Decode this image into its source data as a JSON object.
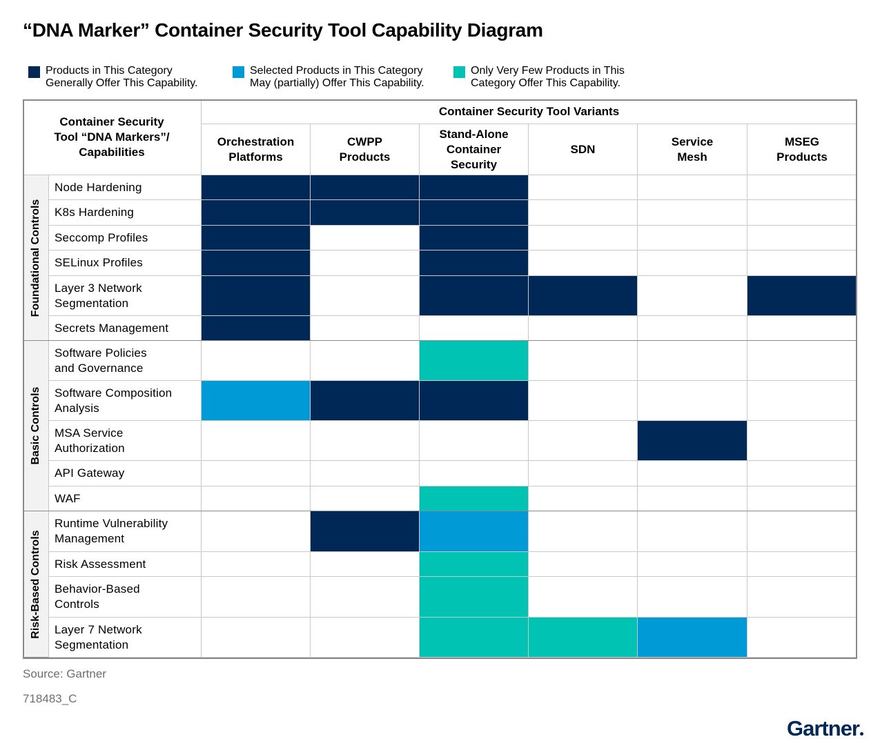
{
  "title": "“DNA Marker” Container Security Tool Capability Diagram",
  "colors": {
    "general": "#002856",
    "partial": "#009ad7",
    "few": "#00c3b3",
    "none": "#ffffff"
  },
  "legend": [
    {
      "key": "general",
      "lines": [
        "Products in This Category",
        "Generally Offer This Capability."
      ]
    },
    {
      "key": "partial",
      "lines": [
        "Selected Products in This Category",
        "May (partially) Offer This Capability."
      ]
    },
    {
      "key": "few",
      "lines": [
        "Only Very Few Products in This",
        "Category Offer This Capability."
      ]
    }
  ],
  "header": {
    "capabilities_lines": [
      "Container Security",
      "Tool “DNA Markers”/",
      "Capabilities"
    ],
    "variants_title": "Container Security Tool Variants",
    "columns": [
      {
        "id": "orchestration",
        "lines": [
          "Orchestration",
          "Platforms"
        ]
      },
      {
        "id": "cwpp",
        "lines": [
          "CWPP",
          "Products"
        ]
      },
      {
        "id": "standalone",
        "lines": [
          "Stand-Alone",
          "Container",
          "Security"
        ]
      },
      {
        "id": "sdn",
        "lines": [
          "SDN"
        ]
      },
      {
        "id": "service_mesh",
        "lines": [
          "Service",
          "Mesh"
        ]
      },
      {
        "id": "mseg",
        "lines": [
          "MSEG",
          "Products"
        ]
      }
    ]
  },
  "groups": [
    {
      "label": "Foundational Controls",
      "rows": [
        {
          "lines": [
            "Node Hardening"
          ],
          "cells": [
            "general",
            "general",
            "general",
            "none",
            "none",
            "none"
          ]
        },
        {
          "lines": [
            "K8s Hardening"
          ],
          "cells": [
            "general",
            "general",
            "general",
            "none",
            "none",
            "none"
          ]
        },
        {
          "lines": [
            "Seccomp Profiles"
          ],
          "cells": [
            "general",
            "none",
            "general",
            "none",
            "none",
            "none"
          ]
        },
        {
          "lines": [
            "SELinux Profiles"
          ],
          "cells": [
            "general",
            "none",
            "general",
            "none",
            "none",
            "none"
          ]
        },
        {
          "lines": [
            "Layer 3 Network",
            "Segmentation"
          ],
          "cells": [
            "general",
            "none",
            "general",
            "general",
            "none",
            "general"
          ]
        },
        {
          "lines": [
            "Secrets Management"
          ],
          "cells": [
            "general",
            "none",
            "none",
            "none",
            "none",
            "none"
          ]
        }
      ]
    },
    {
      "label": "Basic Controls",
      "rows": [
        {
          "lines": [
            "Software Policies",
            "and Governance"
          ],
          "cells": [
            "none",
            "none",
            "few",
            "none",
            "none",
            "none"
          ]
        },
        {
          "lines": [
            "Software Composition",
            "Analysis"
          ],
          "cells": [
            "partial",
            "general",
            "general",
            "none",
            "none",
            "none"
          ]
        },
        {
          "lines": [
            "MSA Service",
            "Authorization"
          ],
          "cells": [
            "none",
            "none",
            "none",
            "none",
            "general",
            "none"
          ]
        },
        {
          "lines": [
            "API Gateway"
          ],
          "cells": [
            "none",
            "none",
            "none",
            "none",
            "none",
            "none"
          ]
        },
        {
          "lines": [
            "WAF"
          ],
          "cells": [
            "none",
            "none",
            "few",
            "none",
            "none",
            "none"
          ]
        }
      ]
    },
    {
      "label": "Risk-Based Controls",
      "rows": [
        {
          "lines": [
            "Runtime Vulnerability",
            "Management"
          ],
          "cells": [
            "none",
            "general",
            "partial",
            "none",
            "none",
            "none"
          ]
        },
        {
          "lines": [
            "Risk Assessment"
          ],
          "cells": [
            "none",
            "none",
            "few",
            "none",
            "none",
            "none"
          ]
        },
        {
          "lines": [
            "Behavior-Based",
            "Controls"
          ],
          "cells": [
            "none",
            "none",
            "few",
            "none",
            "none",
            "none"
          ]
        },
        {
          "lines": [
            "Layer 7 Network",
            "Segmentation"
          ],
          "cells": [
            "none",
            "none",
            "few",
            "few",
            "partial",
            "none"
          ]
        }
      ]
    }
  ],
  "source": "Source: Gartner",
  "figure_id": "718483_C",
  "logo": "Gartner"
}
